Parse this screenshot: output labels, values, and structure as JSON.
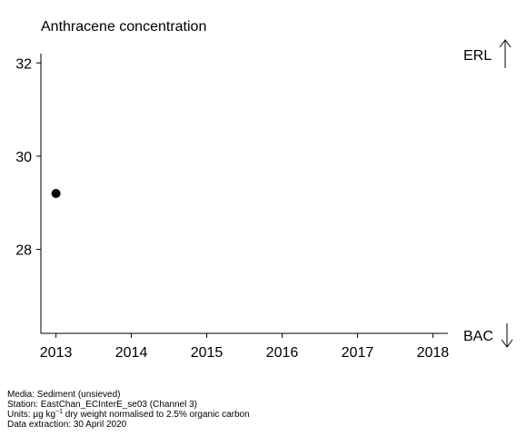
{
  "chart_data": {
    "type": "scatter",
    "title": "Anthracene concentration",
    "xlabel": "",
    "ylabel": "",
    "x_ticks": [
      2013,
      2014,
      2015,
      2016,
      2017,
      2018
    ],
    "y_ticks": [
      28,
      30,
      32
    ],
    "xlim": [
      2012.8,
      2018.2
    ],
    "ylim": [
      26.2,
      32.2
    ],
    "points": [
      {
        "x": 2013,
        "y": 29.2
      }
    ],
    "reference_labels": {
      "upper": "ERL",
      "lower": "BAC"
    },
    "grid": false,
    "marker_color": "#000000"
  },
  "footer": {
    "media": "Media: Sediment (unsieved)",
    "station": "Station: EastChan_ECInterE_se03 (Channel 3)",
    "units_prefix": "Units:  µg kg",
    "units_sup": "−1",
    "units_suffix": " dry weight normalised to 2.5% organic carbon",
    "extraction": "Data extraction: 30 April 2020"
  }
}
